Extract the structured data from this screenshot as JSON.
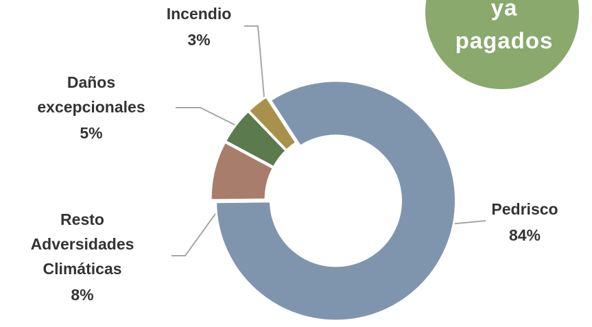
{
  "chart_data": {
    "type": "donut",
    "categories": [
      "Pedrisco",
      "Resto Adversidades Climáticas",
      "Daños excepcionales",
      "Incendio"
    ],
    "values": [
      84,
      8,
      5,
      3
    ],
    "value_labels": [
      "84%",
      "8%",
      "5%",
      "3%"
    ],
    "colors": [
      "#7f95ad",
      "#a87d6b",
      "#5b7a4e",
      "#a8914a"
    ]
  },
  "badge": {
    "lines": [
      "ya",
      "pagados"
    ],
    "color": "#8aa96d"
  }
}
